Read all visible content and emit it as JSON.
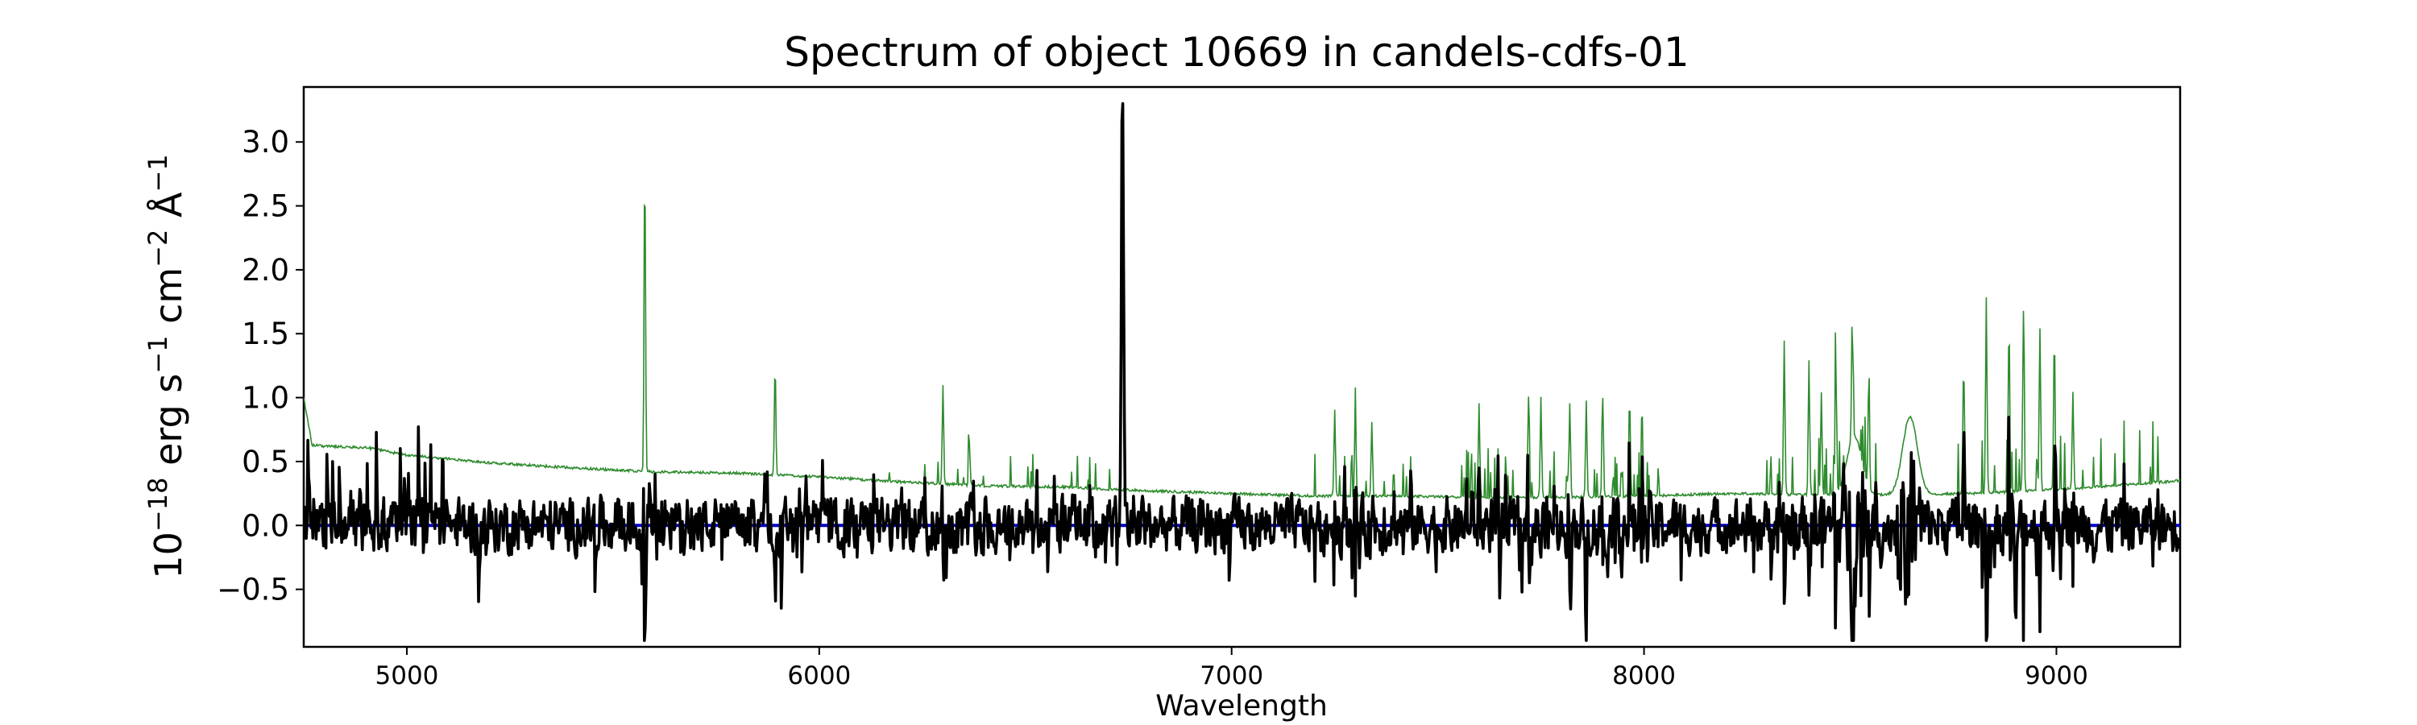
{
  "chart_data": {
    "type": "line",
    "title": "Spectrum of object 10669 in candels-cdfs-01",
    "xlabel": "Wavelength",
    "ylabel": {
      "prefix": "10",
      "exponent": "−18",
      "text_1": " erg s",
      "exp_1": "−1",
      "text_2": " cm",
      "exp_2": "−2",
      "text_3": " Å",
      "exp_3": "−1"
    },
    "xlim": [
      4750,
      9300
    ],
    "ylim": [
      -0.95,
      3.43
    ],
    "x_ticks": [
      5000,
      6000,
      7000,
      8000,
      9000
    ],
    "x_tick_labels": [
      "5000",
      "6000",
      "7000",
      "8000",
      "9000"
    ],
    "y_ticks": [
      -0.5,
      0.0,
      0.5,
      1.0,
      1.5,
      2.0,
      2.5,
      3.0
    ],
    "y_tick_labels": [
      "−0.5",
      "0.0",
      "0.5",
      "1.0",
      "1.5",
      "2.0",
      "2.5",
      "3.0"
    ],
    "grid": false,
    "series": [
      {
        "role": "flux",
        "color": "#000000",
        "continuum": 0.0,
        "noise_amplitude": 0.16,
        "emission_lines": [
          {
            "x": 6735,
            "peak": 3.23
          }
        ],
        "notable_dips": [
          {
            "x": 8635,
            "y": -0.76
          },
          {
            "x": 8900,
            "y": -0.76
          },
          {
            "x": 7650,
            "y": -0.5
          },
          {
            "x": 7860,
            "y": -0.58
          }
        ]
      },
      {
        "role": "error",
        "color": "#2e8b2e",
        "continuum_points": [
          [
            4750,
            1.0
          ],
          [
            4770,
            0.63
          ],
          [
            4800,
            0.62
          ],
          [
            4900,
            0.61
          ],
          [
            5000,
            0.55
          ],
          [
            5200,
            0.49
          ],
          [
            5400,
            0.45
          ],
          [
            5600,
            0.42
          ],
          [
            5800,
            0.41
          ],
          [
            6000,
            0.38
          ],
          [
            6200,
            0.34
          ],
          [
            6400,
            0.31
          ],
          [
            6600,
            0.3
          ],
          [
            6800,
            0.27
          ],
          [
            7000,
            0.25
          ],
          [
            7200,
            0.23
          ],
          [
            7400,
            0.23
          ],
          [
            7600,
            0.22
          ],
          [
            7800,
            0.22
          ],
          [
            8000,
            0.23
          ],
          [
            8200,
            0.25
          ],
          [
            8400,
            0.24
          ],
          [
            8600,
            0.24
          ],
          [
            8800,
            0.25
          ],
          [
            9000,
            0.28
          ],
          [
            9300,
            0.35
          ]
        ],
        "sky_lines": [
          {
            "x": 5577,
            "peak": 2.85
          },
          {
            "x": 5893,
            "peak": 1.27
          },
          {
            "x": 6300,
            "peak": 1.1
          },
          {
            "x": 6364,
            "peak": 0.65
          },
          {
            "x": 7250,
            "peak": 0.9
          },
          {
            "x": 7300,
            "peak": 0.9
          },
          {
            "x": 7340,
            "peak": 0.8
          },
          {
            "x": 7600,
            "peak": 0.95
          },
          {
            "x": 7720,
            "peak": 1.0
          },
          {
            "x": 7750,
            "peak": 1.0
          },
          {
            "x": 7820,
            "peak": 0.95
          },
          {
            "x": 7860,
            "peak": 0.98
          },
          {
            "x": 7900,
            "peak": 1.0
          },
          {
            "x": 7965,
            "peak": 1.0
          },
          {
            "x": 7995,
            "peak": 0.95
          },
          {
            "x": 8340,
            "peak": 1.45
          },
          {
            "x": 8400,
            "peak": 1.3
          },
          {
            "x": 8430,
            "peak": 1.05
          },
          {
            "x": 8465,
            "peak": 1.2
          },
          {
            "x": 8505,
            "peak": 1.05
          },
          {
            "x": 8545,
            "peak": 1.05
          },
          {
            "x": 8775,
            "peak": 1.27
          },
          {
            "x": 8830,
            "peak": 1.78
          },
          {
            "x": 8885,
            "peak": 1.6
          },
          {
            "x": 8920,
            "peak": 1.68
          },
          {
            "x": 8960,
            "peak": 1.55
          },
          {
            "x": 8995,
            "peak": 1.5
          },
          {
            "x": 9040,
            "peak": 1.05
          }
        ],
        "broad_bumps": [
          {
            "x": 8645,
            "peak": 0.85
          },
          {
            "x": 8510,
            "peak": 0.7
          }
        ]
      },
      {
        "role": "zero",
        "color": "#0000cc",
        "values": [
          0.0
        ]
      }
    ]
  }
}
